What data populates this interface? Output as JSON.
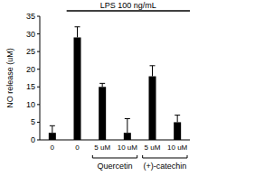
{
  "chart_data": {
    "type": "bar",
    "categories": [
      "0",
      "0",
      "5 uM",
      "10 uM",
      "5 uM",
      "10 uM"
    ],
    "values": [
      2,
      29,
      15,
      2,
      18,
      5
    ],
    "errors": [
      2,
      3,
      1,
      4,
      3,
      2
    ],
    "color": "#000000",
    "y_label": "NO release (uM)",
    "annotations": [
      "LPS 100 ng/mL"
    ],
    "group_labels": [
      "Quercetin",
      "(+)-catechin"
    ],
    "ylim": [
      0,
      35
    ],
    "yticks": [
      0,
      5,
      10,
      15,
      20,
      25,
      30,
      35
    ],
    "grid": false
  }
}
